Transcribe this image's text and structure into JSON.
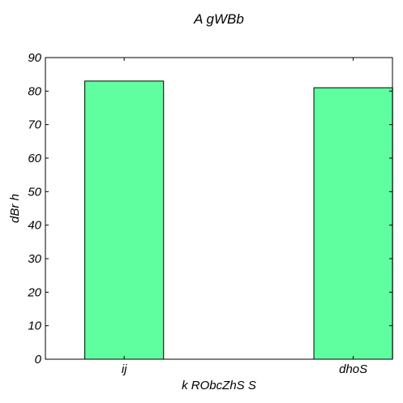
{
  "chart_data": {
    "type": "bar",
    "title": "A gWBb",
    "xlabel": "k RObcZhS  S",
    "ylabel": "dBr h",
    "categories": [
      "ij",
      "dhoS"
    ],
    "values": [
      83,
      81
    ],
    "ylim": [
      0,
      90
    ],
    "yticks": [
      0,
      10,
      20,
      30,
      40,
      50,
      60,
      70,
      80,
      90
    ],
    "grid": false,
    "bar_color": "#5fff9f"
  }
}
